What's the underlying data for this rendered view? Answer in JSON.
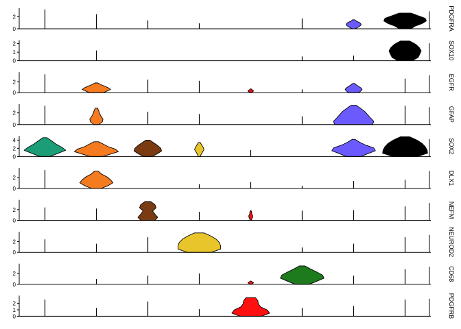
{
  "chart_data": {
    "type": "violin",
    "categories_count": 8,
    "category_colors": [
      "#1b9e77",
      "#f47b20",
      "#7a3b12",
      "#e8c52a",
      "#ff1010",
      "#1d7a1d",
      "#6b5bff",
      "#000000"
    ],
    "xlabel": "",
    "ylabel": "",
    "rows": [
      {
        "gene": "PDGFRA",
        "ylim": [
          0,
          3.4
        ],
        "yticks": [
          0,
          2
        ],
        "violins": [
          {
            "cat": 0,
            "max": 3.2,
            "widths": [
              0.02,
              0.01,
              0.01,
              0.01,
              0.01,
              0.01,
              0.01
            ]
          },
          {
            "cat": 1,
            "max": 2.4,
            "widths": [
              0.01,
              0.01,
              0.01,
              0.01,
              0.01,
              0.01,
              0.01
            ]
          },
          {
            "cat": 2,
            "max": 1.4,
            "widths": [
              0.01,
              0.01,
              0.01,
              0.01,
              0.01,
              0.01,
              0.01
            ]
          },
          {
            "cat": 3,
            "max": 0.9,
            "widths": [
              0.01,
              0.01,
              0.01,
              0.01,
              0.01,
              0.01,
              0.01
            ]
          },
          {
            "cat": 5,
            "max": 1.7,
            "widths": [
              0.01,
              0.01,
              0.01,
              0.01,
              0.01,
              0.01,
              0.01
            ]
          },
          {
            "cat": 6,
            "max": 1.5,
            "widths": [
              0.06,
              0.18,
              0.28,
              0.32,
              0.26,
              0.12,
              0.04
            ]
          },
          {
            "cat": 7,
            "max": 2.6,
            "widths": [
              0.25,
              0.42,
              0.72,
              0.9,
              0.85,
              0.55,
              0.25
            ]
          }
        ]
      },
      {
        "gene": "SOX10",
        "ylim": [
          0,
          2.4
        ],
        "yticks": [
          0,
          1,
          2
        ],
        "violins": [
          {
            "cat": 1,
            "max": 1.2,
            "widths": [
              0.01,
              0.01,
              0.01,
              0.01,
              0.01,
              0.01,
              0.01
            ]
          },
          {
            "cat": 5,
            "max": 0.5,
            "widths": [
              0.01,
              0.01,
              0.01,
              0.01,
              0.01,
              0.01,
              0.01
            ]
          },
          {
            "cat": 6,
            "max": 0.6,
            "widths": [
              0.01,
              0.01,
              0.01,
              0.01,
              0.01,
              0.01,
              0.01
            ]
          },
          {
            "cat": 7,
            "max": 2.3,
            "widths": [
              0.3,
              0.55,
              0.62,
              0.68,
              0.6,
              0.45,
              0.2
            ]
          }
        ]
      },
      {
        "gene": "EGFR",
        "ylim": [
          0,
          3.8
        ],
        "yticks": [
          0,
          2
        ],
        "violins": [
          {
            "cat": 0,
            "max": 3.4,
            "widths": [
              0.02,
              0.01,
              0.01,
              0.01,
              0.01,
              0.01,
              0.01
            ]
          },
          {
            "cat": 1,
            "max": 1.8,
            "widths": [
              0.3,
              0.45,
              0.6,
              0.5,
              0.35,
              0.18,
              0.06
            ]
          },
          {
            "cat": 2,
            "max": 2.4,
            "widths": [
              0.01,
              0.01,
              0.01,
              0.01,
              0.01,
              0.01,
              0.01
            ]
          },
          {
            "cat": 3,
            "max": 2.2,
            "widths": [
              0.01,
              0.01,
              0.01,
              0.01,
              0.01,
              0.01,
              0.01
            ]
          },
          {
            "cat": 4,
            "max": 0.7,
            "widths": [
              0.02,
              0.06,
              0.1,
              0.12,
              0.08,
              0.04,
              0.02
            ]
          },
          {
            "cat": 5,
            "max": 0.6,
            "widths": [
              0.01,
              0.01,
              0.01,
              0.01,
              0.01,
              0.01,
              0.01
            ]
          },
          {
            "cat": 6,
            "max": 1.7,
            "widths": [
              0.2,
              0.3,
              0.36,
              0.32,
              0.22,
              0.12,
              0.04
            ]
          },
          {
            "cat": 7,
            "max": 2.6,
            "widths": [
              0.01,
              0.01,
              0.01,
              0.01,
              0.01,
              0.01,
              0.01
            ]
          }
        ]
      },
      {
        "gene": "GFAP",
        "ylim": [
          0,
          3.5
        ],
        "yticks": [
          0,
          2
        ],
        "violins": [
          {
            "cat": 0,
            "max": 3.2,
            "widths": [
              0.02,
              0.01,
              0.01,
              0.01,
              0.01,
              0.01,
              0.01
            ]
          },
          {
            "cat": 1,
            "max": 2.8,
            "widths": [
              0.1,
              0.25,
              0.28,
              0.2,
              0.14,
              0.1,
              0.05
            ]
          },
          {
            "cat": 2,
            "max": 2.2,
            "widths": [
              0.01,
              0.01,
              0.01,
              0.01,
              0.01,
              0.01,
              0.01
            ]
          },
          {
            "cat": 3,
            "max": 1.8,
            "widths": [
              0.01,
              0.01,
              0.01,
              0.01,
              0.01,
              0.01,
              0.01
            ]
          },
          {
            "cat": 5,
            "max": 1.4,
            "widths": [
              0.01,
              0.01,
              0.01,
              0.01,
              0.01,
              0.01,
              0.01
            ]
          },
          {
            "cat": 6,
            "max": 3.3,
            "widths": [
              0.8,
              0.85,
              0.72,
              0.6,
              0.48,
              0.3,
              0.1
            ]
          },
          {
            "cat": 7,
            "max": 3.2,
            "widths": [
              0.01,
              0.01,
              0.01,
              0.01,
              0.01,
              0.01,
              0.01
            ]
          }
        ]
      },
      {
        "gene": "SOX2",
        "ylim": [
          0,
          5
        ],
        "yticks": [
          0,
          2,
          4
        ],
        "violins": [
          {
            "cat": 0,
            "max": 4.6,
            "widths": [
              0.2,
              0.55,
              0.88,
              0.7,
              0.46,
              0.28,
              0.08
            ]
          },
          {
            "cat": 1,
            "max": 3.6,
            "widths": [
              0.25,
              0.6,
              0.93,
              0.8,
              0.5,
              0.3,
              0.1
            ]
          },
          {
            "cat": 2,
            "max": 4.0,
            "widths": [
              0.18,
              0.4,
              0.58,
              0.55,
              0.42,
              0.25,
              0.08
            ]
          },
          {
            "cat": 3,
            "max": 3.4,
            "widths": [
              0.05,
              0.08,
              0.14,
              0.2,
              0.16,
              0.1,
              0.04
            ]
          },
          {
            "cat": 4,
            "max": 1.6,
            "widths": [
              0.01,
              0.01,
              0.01,
              0.01,
              0.01,
              0.01,
              0.01
            ]
          },
          {
            "cat": 6,
            "max": 4.2,
            "widths": [
              0.3,
              0.6,
              0.92,
              0.85,
              0.5,
              0.25,
              0.06
            ]
          },
          {
            "cat": 7,
            "max": 4.8,
            "widths": [
              0.5,
              0.95,
              0.93,
              0.85,
              0.72,
              0.5,
              0.2
            ]
          }
        ]
      },
      {
        "gene": "DLX1",
        "ylim": [
          0,
          3.8
        ],
        "yticks": [
          0,
          2
        ],
        "violins": [
          {
            "cat": 0,
            "max": 3.4,
            "widths": [
              0.02,
              0.01,
              0.01,
              0.01,
              0.01,
              0.01,
              0.01
            ]
          },
          {
            "cat": 1,
            "max": 3.2,
            "widths": [
              0.2,
              0.5,
              0.7,
              0.6,
              0.45,
              0.22,
              0.08
            ]
          },
          {
            "cat": 3,
            "max": 0.8,
            "widths": [
              0.01,
              0.01,
              0.01,
              0.01,
              0.01,
              0.01,
              0.01
            ]
          },
          {
            "cat": 4,
            "max": 1.2,
            "widths": [
              0.01,
              0.01,
              0.01,
              0.01,
              0.01,
              0.01,
              0.01
            ]
          },
          {
            "cat": 5,
            "max": 0.5,
            "widths": [
              0.01,
              0.01,
              0.01,
              0.01,
              0.01,
              0.01,
              0.01
            ]
          },
          {
            "cat": 6,
            "max": 1.4,
            "widths": [
              0.01,
              0.01,
              0.01,
              0.01,
              0.01,
              0.01,
              0.01
            ]
          },
          {
            "cat": 7,
            "max": 1.6,
            "widths": [
              0.01,
              0.01,
              0.01,
              0.01,
              0.01,
              0.01,
              0.01
            ]
          }
        ]
      },
      {
        "gene": "NEFM",
        "ylim": [
          0,
          3.8
        ],
        "yticks": [
          0,
          2
        ],
        "violins": [
          {
            "cat": 0,
            "max": 2.4,
            "widths": [
              0.01,
              0.01,
              0.01,
              0.01,
              0.01,
              0.01,
              0.01
            ]
          },
          {
            "cat": 1,
            "max": 2.2,
            "widths": [
              0.01,
              0.01,
              0.01,
              0.01,
              0.01,
              0.01,
              0.01
            ]
          },
          {
            "cat": 2,
            "max": 3.5,
            "widths": [
              0.3,
              0.42,
              0.3,
              0.2,
              0.35,
              0.3,
              0.12
            ]
          },
          {
            "cat": 3,
            "max": 1.6,
            "widths": [
              0.01,
              0.01,
              0.01,
              0.01,
              0.01,
              0.01,
              0.01
            ]
          },
          {
            "cat": 4,
            "max": 1.8,
            "widths": [
              0.04,
              0.04,
              0.08,
              0.08,
              0.04,
              0.04,
              0.02
            ]
          },
          {
            "cat": 5,
            "max": 1.8,
            "widths": [
              0.01,
              0.01,
              0.01,
              0.01,
              0.01,
              0.01,
              0.01
            ]
          },
          {
            "cat": 6,
            "max": 1.9,
            "widths": [
              0.01,
              0.01,
              0.01,
              0.01,
              0.01,
              0.01,
              0.01
            ]
          },
          {
            "cat": 7,
            "max": 2.6,
            "widths": [
              0.01,
              0.01,
              0.01,
              0.01,
              0.01,
              0.01,
              0.01
            ]
          }
        ]
      },
      {
        "gene": "NEUROD2",
        "ylim": [
          0,
          3.8
        ],
        "yticks": [
          0,
          2
        ],
        "violins": [
          {
            "cat": 0,
            "max": 2.4,
            "widths": [
              0.01,
              0.01,
              0.01,
              0.01,
              0.01,
              0.01,
              0.01
            ]
          },
          {
            "cat": 1,
            "max": 1.6,
            "widths": [
              0.01,
              0.01,
              0.01,
              0.01,
              0.01,
              0.01,
              0.01
            ]
          },
          {
            "cat": 2,
            "max": 2.8,
            "widths": [
              0.01,
              0.01,
              0.01,
              0.01,
              0.01,
              0.01,
              0.01
            ]
          },
          {
            "cat": 3,
            "max": 3.6,
            "widths": [
              0.5,
              0.9,
              0.9,
              0.85,
              0.72,
              0.5,
              0.2
            ]
          },
          {
            "cat": 5,
            "max": 0.9,
            "widths": [
              0.01,
              0.01,
              0.01,
              0.01,
              0.01,
              0.01,
              0.01
            ]
          },
          {
            "cat": 6,
            "max": 1.6,
            "widths": [
              0.01,
              0.01,
              0.01,
              0.01,
              0.01,
              0.01,
              0.01
            ]
          },
          {
            "cat": 7,
            "max": 2.8,
            "widths": [
              0.01,
              0.01,
              0.01,
              0.01,
              0.01,
              0.01,
              0.01
            ]
          }
        ]
      },
      {
        "gene": "CD68",
        "ylim": [
          0,
          3.8
        ],
        "yticks": [
          0,
          2
        ],
        "violins": [
          {
            "cat": 1,
            "max": 1.0,
            "widths": [
              0.01,
              0.01,
              0.01,
              0.01,
              0.01,
              0.01,
              0.01
            ]
          },
          {
            "cat": 2,
            "max": 1.6,
            "widths": [
              0.01,
              0.01,
              0.01,
              0.01,
              0.01,
              0.01,
              0.01
            ]
          },
          {
            "cat": 3,
            "max": 2.0,
            "widths": [
              0.01,
              0.01,
              0.01,
              0.01,
              0.01,
              0.01,
              0.01
            ]
          },
          {
            "cat": 4,
            "max": 0.6,
            "widths": [
              0.02,
              0.06,
              0.1,
              0.12,
              0.08,
              0.04,
              0.02
            ]
          },
          {
            "cat": 5,
            "max": 3.4,
            "widths": [
              0.3,
              0.62,
              0.92,
              0.86,
              0.62,
              0.35,
              0.12
            ]
          },
          {
            "cat": 6,
            "max": 1.6,
            "widths": [
              0.01,
              0.01,
              0.01,
              0.01,
              0.01,
              0.01,
              0.01
            ]
          },
          {
            "cat": 7,
            "max": 2.8,
            "widths": [
              0.01,
              0.01,
              0.01,
              0.01,
              0.01,
              0.01,
              0.01
            ]
          }
        ]
      },
      {
        "gene": "PDGFRB",
        "ylim": [
          0,
          3.2
        ],
        "yticks": [
          0,
          1,
          2
        ],
        "violins": [
          {
            "cat": 0,
            "max": 2.6,
            "widths": [
              0.01,
              0.01,
              0.01,
              0.01,
              0.01,
              0.01,
              0.01
            ]
          },
          {
            "cat": 1,
            "max": 1.3,
            "widths": [
              0.01,
              0.01,
              0.01,
              0.01,
              0.01,
              0.01,
              0.01
            ]
          },
          {
            "cat": 2,
            "max": 2.3,
            "widths": [
              0.01,
              0.01,
              0.01,
              0.01,
              0.01,
              0.01,
              0.01
            ]
          },
          {
            "cat": 3,
            "max": 1.1,
            "widths": [
              0.01,
              0.01,
              0.01,
              0.01,
              0.01,
              0.01,
              0.01
            ]
          },
          {
            "cat": 4,
            "max": 2.9,
            "widths": [
              0.45,
              0.8,
              0.7,
              0.42,
              0.32,
              0.3,
              0.2
            ]
          },
          {
            "cat": 5,
            "max": 1.3,
            "widths": [
              0.01,
              0.01,
              0.01,
              0.01,
              0.01,
              0.01,
              0.01
            ]
          },
          {
            "cat": 6,
            "max": 1.6,
            "widths": [
              0.01,
              0.01,
              0.01,
              0.01,
              0.01,
              0.01,
              0.01
            ]
          },
          {
            "cat": 7,
            "max": 2.6,
            "widths": [
              0.01,
              0.01,
              0.01,
              0.01,
              0.01,
              0.01,
              0.01
            ]
          }
        ]
      }
    ]
  }
}
